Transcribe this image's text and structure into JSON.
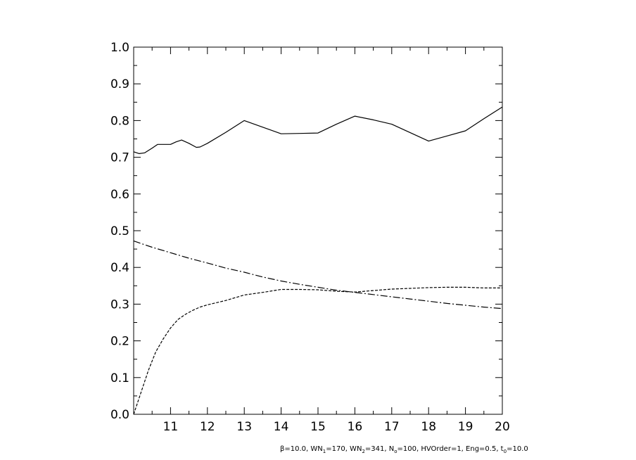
{
  "chart_data": {
    "type": "line",
    "xlim": [
      10,
      20
    ],
    "ylim": [
      0.0,
      1.0
    ],
    "x_ticks": [
      11,
      12,
      13,
      14,
      15,
      16,
      17,
      18,
      19,
      20
    ],
    "x_tick_labels": [
      "11",
      "12",
      "13",
      "14",
      "15",
      "16",
      "17",
      "18",
      "19",
      "20"
    ],
    "y_ticks": [
      0.0,
      0.1,
      0.2,
      0.3,
      0.4,
      0.5,
      0.6,
      0.7,
      0.8,
      0.9,
      1.0
    ],
    "y_tick_labels": [
      "0.0",
      "0.1",
      "0.2",
      "0.3",
      "0.4",
      "0.5",
      "0.6",
      "0.7",
      "0.8",
      "0.9",
      "1.0"
    ],
    "grid": false,
    "series": [
      {
        "style": "solid",
        "x": [
          10.0,
          10.15,
          10.3,
          10.5,
          10.65,
          10.8,
          11.0,
          11.15,
          11.3,
          11.5,
          11.7,
          11.8,
          12.0,
          12.5,
          13.0,
          13.5,
          14.0,
          14.5,
          15.0,
          15.5,
          16.0,
          16.5,
          17.0,
          17.5,
          18.0,
          18.5,
          19.0,
          19.5,
          20.0
        ],
        "y": [
          0.715,
          0.71,
          0.712,
          0.725,
          0.735,
          0.735,
          0.735,
          0.742,
          0.747,
          0.738,
          0.727,
          0.728,
          0.738,
          0.768,
          0.8,
          0.782,
          0.764,
          0.765,
          0.766,
          0.79,
          0.812,
          0.802,
          0.79,
          0.767,
          0.744,
          0.758,
          0.772,
          0.805,
          0.837
        ]
      },
      {
        "style": "dash-dot",
        "x": [
          10.0,
          10.5,
          11.0,
          11.5,
          12.0,
          12.5,
          13.0,
          13.5,
          14.0,
          14.5,
          15.0,
          15.5,
          16.0,
          16.5,
          17.0,
          17.5,
          18.0,
          18.5,
          19.0,
          19.5,
          20.0
        ],
        "y": [
          0.472,
          0.455,
          0.44,
          0.425,
          0.412,
          0.398,
          0.387,
          0.374,
          0.363,
          0.354,
          0.346,
          0.338,
          0.332,
          0.326,
          0.32,
          0.314,
          0.308,
          0.302,
          0.297,
          0.292,
          0.288
        ]
      },
      {
        "style": "dashed",
        "x": [
          10.0,
          10.2,
          10.4,
          10.6,
          10.8,
          11.0,
          11.2,
          11.4,
          11.6,
          11.8,
          12.0,
          12.5,
          13.0,
          13.5,
          14.0,
          14.5,
          15.0,
          15.5,
          16.0,
          16.5,
          17.0,
          17.5,
          18.0,
          18.5,
          19.0,
          19.5,
          20.0
        ],
        "y": [
          0.0,
          0.06,
          0.12,
          0.17,
          0.205,
          0.235,
          0.258,
          0.272,
          0.283,
          0.292,
          0.298,
          0.31,
          0.325,
          0.332,
          0.34,
          0.34,
          0.339,
          0.335,
          0.333,
          0.337,
          0.341,
          0.343,
          0.345,
          0.346,
          0.346,
          0.344,
          0.344
        ]
      }
    ]
  },
  "footnote": {
    "beta": "β",
    "beta_rest": "=10.0, WN",
    "wn1_sub": "1",
    "wn1_rest": "=170, WN",
    "wn2_sub": "2",
    "wn2_rest": "=341, N",
    "n_sub": "o",
    "n_rest": "=100, HVOrder=1, Eng=0.5, t",
    "t_sub": "0",
    "t_rest": "=10.0"
  }
}
